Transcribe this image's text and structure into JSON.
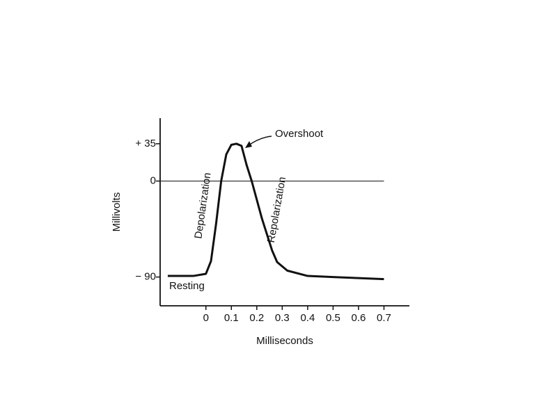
{
  "chart_data": {
    "type": "line",
    "x_label": "Milliseconds",
    "y_label": "Millivolts",
    "x": [
      -0.15,
      -0.05,
      0,
      0.02,
      0.04,
      0.06,
      0.08,
      0.1,
      0.12,
      0.14,
      0.16,
      0.18,
      0.22,
      0.26,
      0.28,
      0.32,
      0.4,
      0.5,
      0.6,
      0.7
    ],
    "series": [
      {
        "color": "#111111",
        "values": [
          -89,
          -89,
          -87,
          -75,
          -40,
          0,
          25,
          34,
          35,
          33,
          15,
          0,
          -35,
          -65,
          -76,
          -84,
          -89,
          -90,
          -91,
          -92
        ]
      }
    ],
    "xlim": [
      -0.18,
      0.8
    ],
    "ylim": [
      -117,
      59
    ],
    "xticks": [
      0,
      0.1,
      0.2,
      0.3,
      0.4,
      0.5,
      0.6,
      0.7
    ],
    "yticks": [
      {
        "value": 35,
        "label": "+ 35"
      },
      0,
      {
        "value": -90,
        "label": "− 90"
      }
    ],
    "zero_line": true,
    "annotations": [
      "Overshoot",
      "Depolarization",
      "Repolarization",
      "Resting"
    ]
  }
}
